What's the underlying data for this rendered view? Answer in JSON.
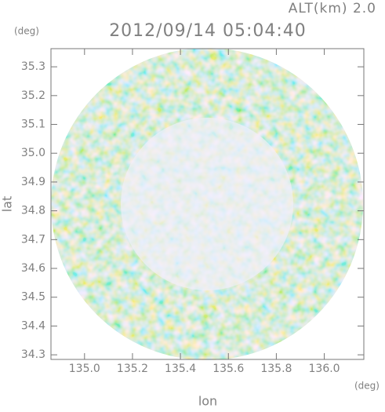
{
  "chart_data": {
    "type": "image",
    "title": "2012/09/14 05:04:40",
    "subtitle": "ALT(km) 2.0",
    "y_unit": "(deg)",
    "x_unit": "(deg)",
    "xlabel": "lon",
    "ylabel": "lat",
    "xlim": [
      134.86,
      136.165
    ],
    "ylim": [
      34.284,
      35.363
    ],
    "xticks": [
      {
        "value": 135,
        "label": "135.0"
      },
      135.2,
      135.4,
      135.6,
      135.8,
      {
        "value": 136,
        "label": "136.0"
      }
    ],
    "yticks": [
      {
        "value": 34.3,
        "label": "34.3"
      },
      34.4,
      34.5,
      34.6,
      34.7,
      34.8,
      34.9,
      {
        "value": 35,
        "label": "35.0"
      },
      35.1,
      35.2,
      35.3
    ]
  }
}
